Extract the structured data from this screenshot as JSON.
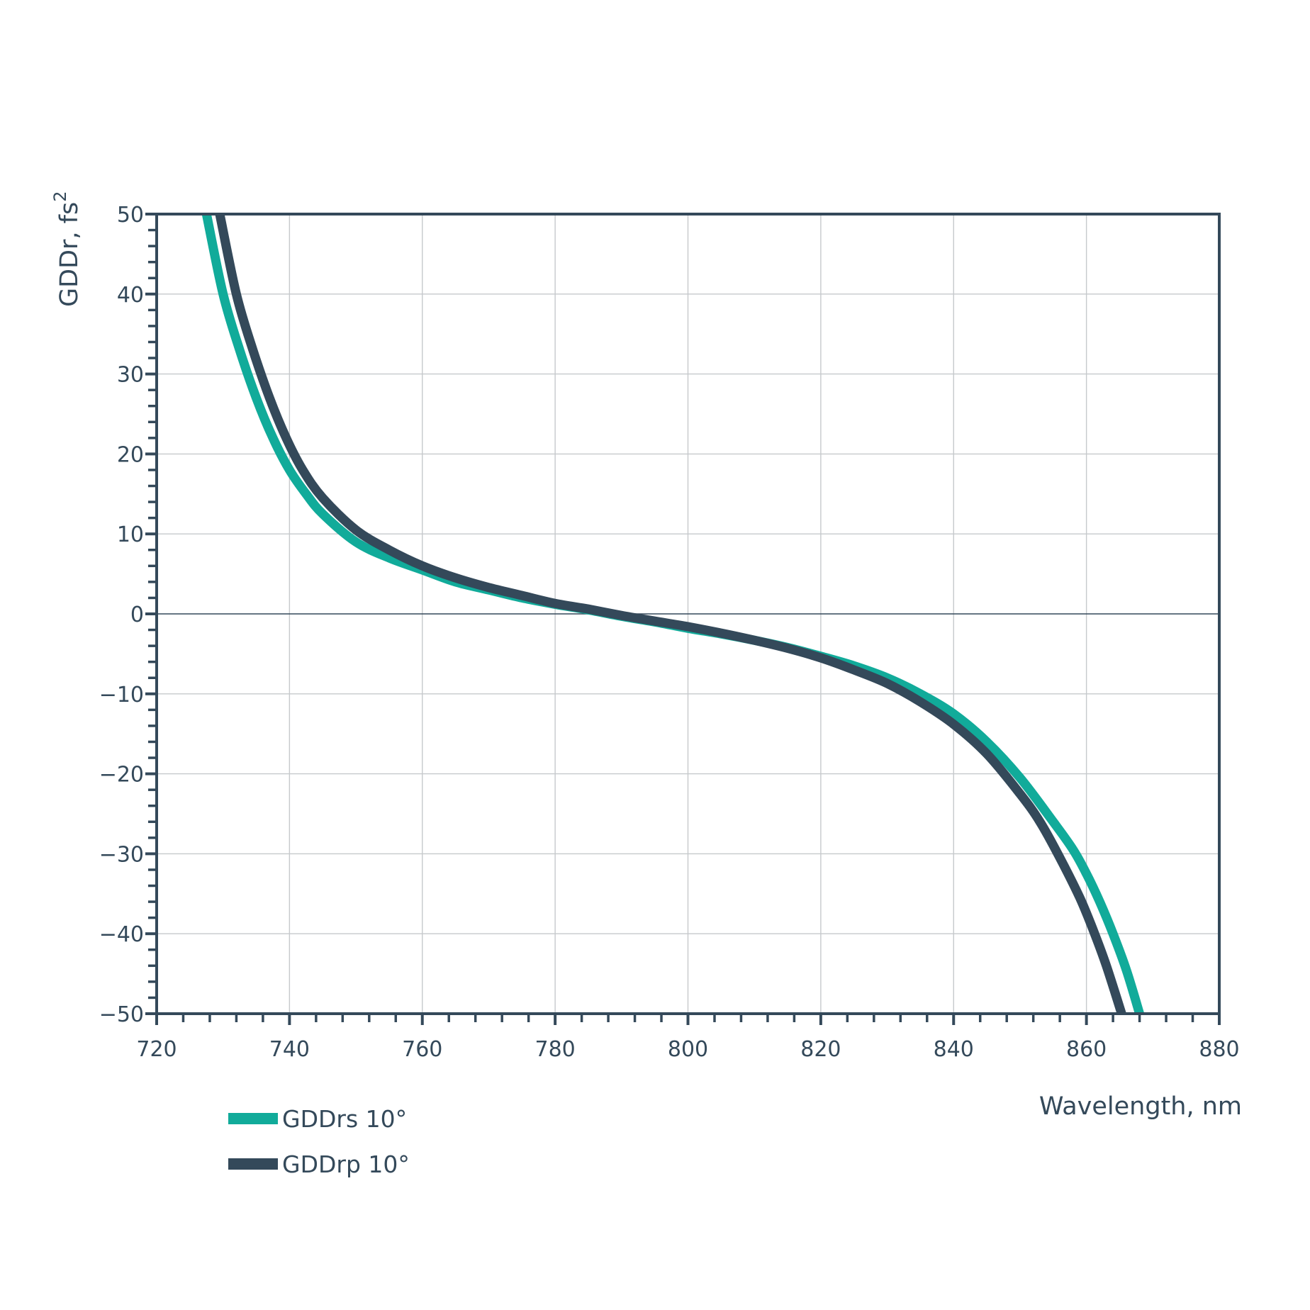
{
  "chart_data": {
    "type": "line",
    "xlabel": "Wavelength, nm",
    "ylabel_text": "GDDr, fs",
    "ylabel_sup": "2",
    "xlim": [
      720,
      880
    ],
    "ylim": [
      -50,
      50
    ],
    "x_ticks": [
      720,
      740,
      760,
      780,
      800,
      820,
      840,
      860,
      880
    ],
    "x_tick_labels": [
      "720",
      "740",
      "760",
      "780",
      "800",
      "820",
      "840",
      "860",
      "880"
    ],
    "y_ticks": [
      50,
      40,
      30,
      20,
      10,
      0,
      -10,
      -20,
      -30,
      -40,
      -50
    ],
    "y_tick_labels": [
      "50",
      "40",
      "30",
      "20",
      "10",
      "0",
      "−10",
      "−20",
      "−30",
      "−40",
      "−50"
    ],
    "grid": true,
    "legend_position": "bottom-left",
    "colors": {
      "axis": "#34495a",
      "grid": "#c6c9cc",
      "zero_line": "#34495a"
    },
    "series": [
      {
        "name": "GDDrs 10°",
        "color": "#11ab9a",
        "x": [
          727.5,
          730,
          732.5,
          735,
          737.5,
          740,
          742.5,
          745,
          750,
          755,
          760,
          765,
          770,
          775,
          780,
          785,
          790,
          795,
          800,
          805,
          810,
          815,
          820,
          825,
          830,
          835,
          840,
          845,
          850,
          855,
          858,
          860,
          862,
          864,
          866,
          868
        ],
        "y": [
          50,
          40,
          33,
          27,
          22,
          18,
          15,
          12.5,
          9,
          7,
          5.5,
          4,
          3,
          2,
          1.2,
          0.5,
          -0.3,
          -1,
          -1.8,
          -2.5,
          -3.3,
          -4.2,
          -5.3,
          -6.5,
          -8,
          -10,
          -12.5,
          -16,
          -20.5,
          -26,
          -29.5,
          -32.5,
          -36,
          -40,
          -44.5,
          -50
        ]
      },
      {
        "name": "GDDrp 10°",
        "color": "#34495a",
        "x": [
          729.5,
          732,
          734.5,
          737,
          739.5,
          742,
          745,
          750,
          755,
          760,
          765,
          770,
          775,
          780,
          785,
          790,
          795,
          800,
          805,
          810,
          815,
          820,
          825,
          830,
          835,
          840,
          845,
          850,
          853,
          856,
          859,
          861,
          863,
          865.3
        ],
        "y": [
          50,
          40,
          33,
          27,
          22,
          18,
          14.5,
          10.5,
          8,
          6,
          4.5,
          3.3,
          2.3,
          1.3,
          0.6,
          -0.2,
          -0.9,
          -1.6,
          -2.4,
          -3.3,
          -4.3,
          -5.5,
          -7,
          -8.7,
          -11,
          -13.8,
          -17.5,
          -22.5,
          -26,
          -30.5,
          -35.5,
          -39.5,
          -44,
          -50
        ]
      }
    ]
  }
}
